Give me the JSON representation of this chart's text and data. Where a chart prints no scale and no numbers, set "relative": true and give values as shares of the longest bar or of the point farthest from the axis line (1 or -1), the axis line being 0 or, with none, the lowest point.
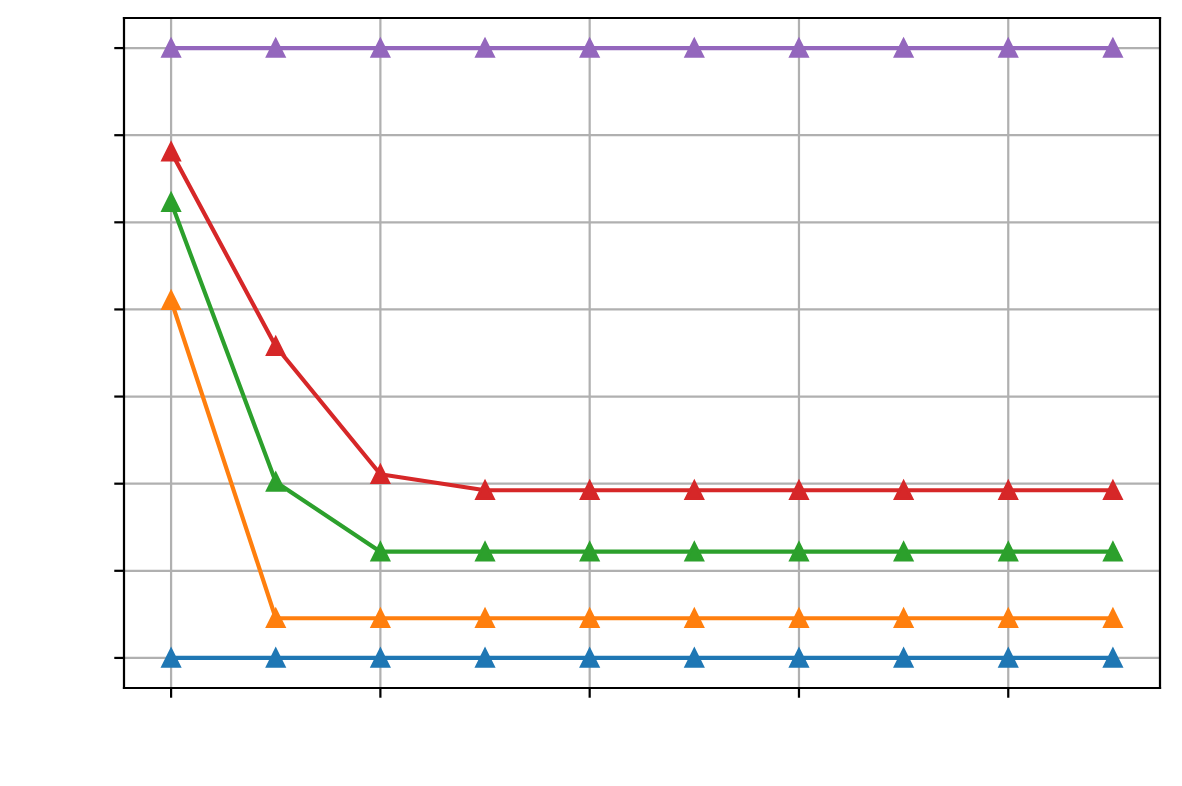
{
  "chart_data": {
    "type": "line",
    "relative": true,
    "categories": [
      null,
      null,
      null,
      null,
      null,
      null,
      null,
      null,
      null,
      null
    ],
    "series": [
      {
        "color": "#1f77b4",
        "values": [
          0.047,
          0.047,
          0.047,
          0.047,
          0.047,
          0.047,
          0.047,
          0.047,
          0.047,
          0.047
        ]
      },
      {
        "color": "#ff7f0e",
        "values": [
          0.606,
          0.109,
          0.109,
          0.109,
          0.109,
          0.109,
          0.109,
          0.109,
          0.109,
          0.109
        ]
      },
      {
        "color": "#2ca02c",
        "values": [
          0.759,
          0.322,
          0.213,
          0.213,
          0.213,
          0.213,
          0.213,
          0.213,
          0.213,
          0.213
        ]
      },
      {
        "color": "#d62728",
        "values": [
          0.838,
          0.534,
          0.334,
          0.309,
          0.309,
          0.309,
          0.309,
          0.309,
          0.309,
          0.309
        ]
      },
      {
        "color": "#9467bd",
        "values": [
          1,
          1,
          1,
          1,
          1,
          1,
          1,
          1,
          1,
          1
        ]
      }
    ],
    "marker": "triangle",
    "line_style": "solid",
    "grid": true
  }
}
